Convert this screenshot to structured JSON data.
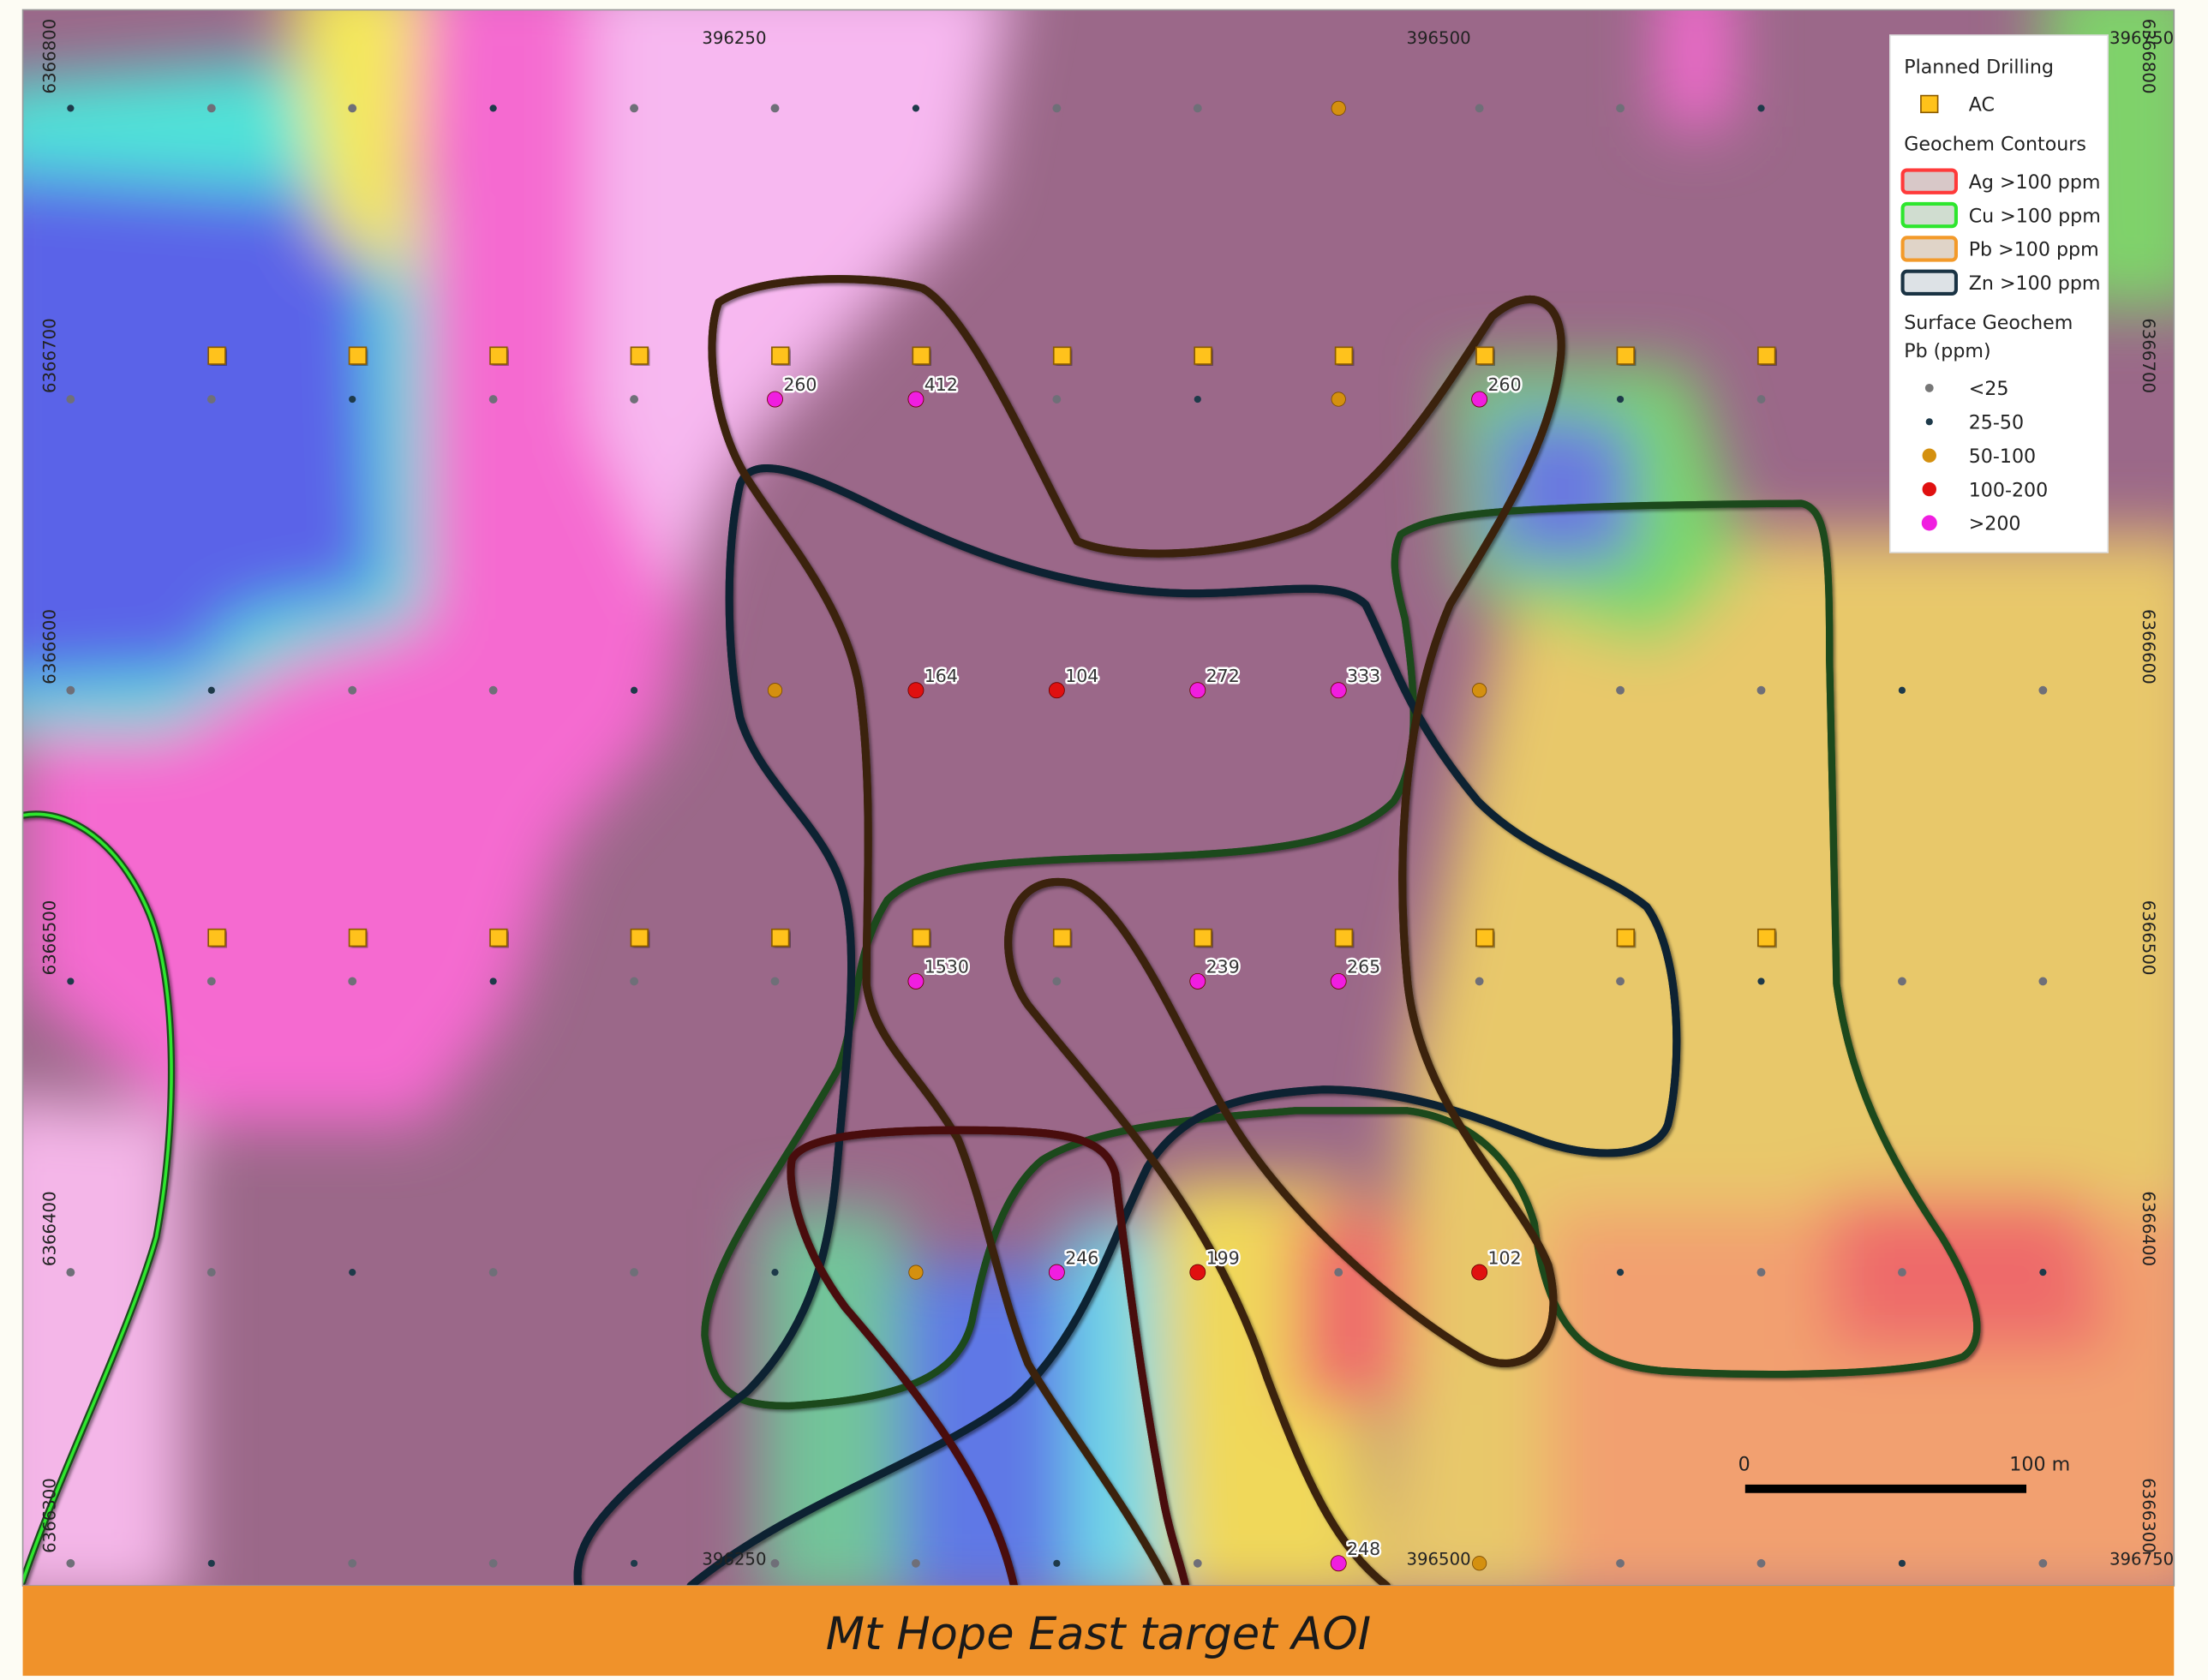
{
  "map": {
    "axis_labels": {
      "top": [
        "396250",
        "396500",
        "396750"
      ],
      "bottom": [
        "396250",
        "396500",
        "396750"
      ],
      "left": [
        "6366800",
        "6366700",
        "6366600",
        "6366500",
        "6366400",
        "6366300"
      ],
      "right": [
        "6366800",
        "6366700",
        "6366600",
        "6366500",
        "6366400",
        "6366300"
      ]
    },
    "legend": {
      "planned_drilling": {
        "title": "Planned Drilling",
        "items": [
          "AC"
        ]
      },
      "geochem_contours": {
        "title": "Geochem Contours",
        "items": [
          "Ag >100 ppm",
          "Cu >100 ppm",
          "Pb >100 ppm",
          "Zn >100 ppm"
        ]
      },
      "surface_geochem": {
        "title": [
          "Surface Geochem",
          "Pb (ppm)"
        ],
        "items": [
          "<25",
          "25-50",
          "50-100",
          "100-200",
          ">200"
        ]
      }
    },
    "sample_labels": [
      "260",
      "412",
      "260",
      "164",
      "104",
      "272",
      "333",
      "1530",
      "239",
      "265",
      "246",
      "199",
      "102",
      "248"
    ],
    "scale_bar": {
      "start": "0",
      "end": "100 m"
    },
    "title": "Mt Hope East target AOI"
  }
}
